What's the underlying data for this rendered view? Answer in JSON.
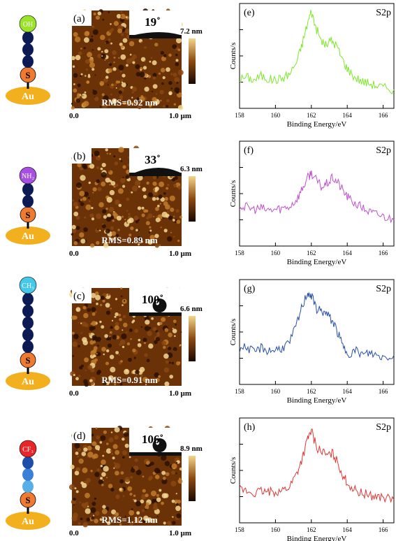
{
  "molecules": [
    {
      "terminal": "OH",
      "terminal_color": "#9be22b",
      "chain_colors": [
        "#0d1b55",
        "#0d1b55",
        "#0d1b55"
      ],
      "sulfur": "S",
      "substrate": "Au"
    },
    {
      "terminal": "NH₂",
      "terminal_color": "#a64fe0",
      "chain_colors": [
        "#0d1b55",
        "#0d1b55"
      ],
      "sulfur": "S",
      "substrate": "Au"
    },
    {
      "terminal": "CH₃",
      "terminal_color": "#45c8ea",
      "chain_colors": [
        "#0d1b55",
        "#0d1b55",
        "#0d1b55",
        "#0d1b55",
        "#0d1b55"
      ],
      "sulfur": "S",
      "substrate": "Au"
    },
    {
      "terminal": "CF₃",
      "terminal_color": "#e8262a",
      "chain_colors": [
        "#5aaee8",
        "#3a80d8",
        "#1f4ea8"
      ],
      "sulfur": "S",
      "substrate": "Au"
    }
  ],
  "afm": [
    {
      "label": "(a)",
      "angle": "19˚",
      "scale_max": "7.2 nm",
      "rms": "RMS=0.92 nm",
      "x_start": "0.0",
      "x_end": "1.0 µm",
      "contact_angle_deg": 19
    },
    {
      "label": "(b)",
      "angle": "33˚",
      "scale_max": "6.3 nm",
      "rms": "RMS=0.89 nm",
      "x_start": "0.0",
      "x_end": "1.0 µm",
      "contact_angle_deg": 33
    },
    {
      "label": "(c)",
      "angle": "100˚",
      "scale_max": "6.6 nm",
      "rms": "RMS=0.91 nm",
      "x_start": "0.0",
      "x_end": "1.0 µm",
      "contact_angle_deg": 100
    },
    {
      "label": "(d)",
      "angle": "106˚",
      "scale_max": "8.9 nm",
      "rms": "RMS=1.12 nm",
      "x_start": "0.0",
      "x_end": "1.0 µm",
      "contact_angle_deg": 106
    }
  ],
  "colors": {
    "afm_dark": "#1a0800",
    "afm_mid": "#8a4a12",
    "afm_light": "#f2d68a",
    "gold": "#f2b01e",
    "sulfur": "#f07a30"
  },
  "chart_data": [
    {
      "type": "line",
      "label": "(e)",
      "title": "S2p",
      "xlabel": "Binding Energy/eV",
      "ylabel": "Counts/s",
      "xlim": [
        158,
        166.6
      ],
      "ylim": [
        0,
        1
      ],
      "xticks": [
        "158",
        "160",
        "162",
        "164",
        "166"
      ],
      "color": "#7ee82a",
      "series": [
        {
          "x": [
            158.0,
            158.4,
            158.8,
            159.2,
            159.6,
            160.0,
            160.4,
            160.8,
            161.2,
            161.5,
            161.8,
            162.0,
            162.2,
            162.5,
            162.8,
            163.1,
            163.4,
            163.7,
            164.0,
            164.4,
            164.8,
            165.2,
            165.6,
            166.0,
            166.6
          ],
          "y": [
            0.28,
            0.3,
            0.27,
            0.31,
            0.28,
            0.27,
            0.29,
            0.33,
            0.45,
            0.62,
            0.82,
            0.93,
            0.8,
            0.66,
            0.6,
            0.65,
            0.6,
            0.48,
            0.38,
            0.3,
            0.26,
            0.24,
            0.22,
            0.2,
            0.18
          ]
        }
      ]
    },
    {
      "type": "line",
      "label": "(f)",
      "title": "S2p",
      "xlabel": "Binding Energy/eV",
      "ylabel": "Counts/s",
      "xlim": [
        158,
        166.6
      ],
      "ylim": [
        0,
        1
      ],
      "xticks": [
        "158",
        "160",
        "162",
        "164",
        "166"
      ],
      "color": "#c050d0",
      "series": [
        {
          "x": [
            158.0,
            158.4,
            158.8,
            159.2,
            159.6,
            160.0,
            160.4,
            160.8,
            161.2,
            161.5,
            161.8,
            162.0,
            162.3,
            162.6,
            162.9,
            163.2,
            163.5,
            163.8,
            164.1,
            164.5,
            164.9,
            165.3,
            165.7,
            166.1,
            166.6
          ],
          "y": [
            0.38,
            0.37,
            0.35,
            0.36,
            0.34,
            0.35,
            0.36,
            0.38,
            0.45,
            0.55,
            0.65,
            0.7,
            0.62,
            0.56,
            0.6,
            0.65,
            0.6,
            0.52,
            0.45,
            0.4,
            0.36,
            0.32,
            0.3,
            0.28,
            0.25
          ]
        }
      ]
    },
    {
      "type": "line",
      "label": "(g)",
      "title": "S2p",
      "xlabel": "Binding Energy/eV",
      "ylabel": "Counts/s",
      "xlim": [
        158,
        166.6
      ],
      "ylim": [
        0,
        1
      ],
      "xticks": [
        "158",
        "160",
        "162",
        "164",
        "166"
      ],
      "color": "#2a50a8",
      "series": [
        {
          "x": [
            158.0,
            158.4,
            158.8,
            159.2,
            159.6,
            160.0,
            160.4,
            160.8,
            161.2,
            161.5,
            161.8,
            162.0,
            162.3,
            162.6,
            162.9,
            163.2,
            163.5,
            163.8,
            164.1,
            164.5,
            164.9,
            165.3,
            165.7,
            166.1,
            166.6
          ],
          "y": [
            0.34,
            0.36,
            0.3,
            0.35,
            0.32,
            0.33,
            0.35,
            0.4,
            0.58,
            0.75,
            0.88,
            0.84,
            0.72,
            0.7,
            0.66,
            0.6,
            0.48,
            0.34,
            0.3,
            0.32,
            0.28,
            0.3,
            0.27,
            0.26,
            0.28
          ]
        }
      ]
    },
    {
      "type": "line",
      "label": "(h)",
      "title": "S2p",
      "xlabel": "Binding Energy/eV",
      "ylabel": "Counts/s",
      "xlim": [
        158,
        166.6
      ],
      "ylim": [
        0,
        1
      ],
      "xticks": [
        "158",
        "160",
        "162",
        "164",
        "166"
      ],
      "color": "#e03838",
      "series": [
        {
          "x": [
            158.0,
            158.4,
            158.8,
            159.2,
            159.6,
            160.0,
            160.4,
            160.8,
            161.2,
            161.5,
            161.8,
            162.0,
            162.3,
            162.6,
            162.9,
            163.2,
            163.5,
            163.8,
            164.1,
            164.5,
            164.9,
            165.3,
            165.7,
            166.1,
            166.6
          ],
          "y": [
            0.32,
            0.3,
            0.28,
            0.3,
            0.29,
            0.3,
            0.31,
            0.35,
            0.48,
            0.62,
            0.8,
            0.88,
            0.72,
            0.68,
            0.64,
            0.66,
            0.56,
            0.44,
            0.36,
            0.3,
            0.28,
            0.26,
            0.25,
            0.24,
            0.22
          ]
        }
      ]
    }
  ]
}
